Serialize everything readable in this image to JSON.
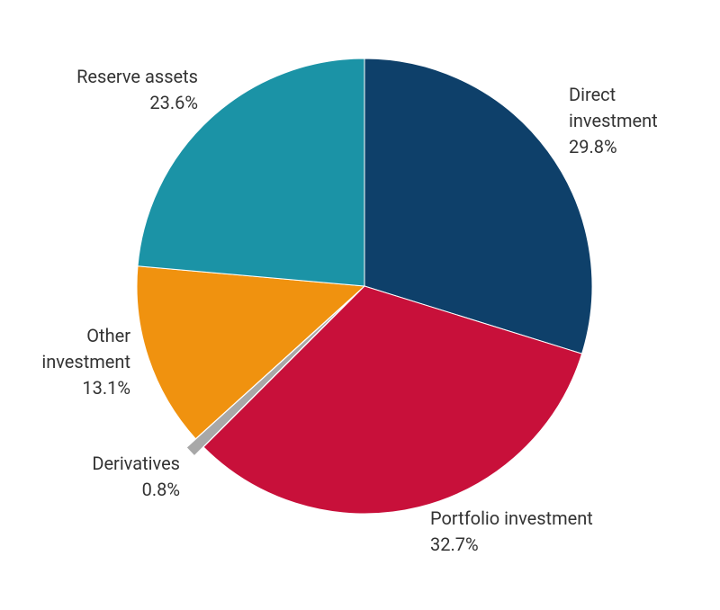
{
  "chart_data": {
    "type": "pie",
    "categories": [
      "Direct investment",
      "Portfolio investment",
      "Derivatives",
      "Other investment",
      "Reserve assets"
    ],
    "values": [
      29.8,
      32.7,
      0.8,
      13.1,
      23.6
    ],
    "value_labels": [
      "29.8%",
      "32.7%",
      "0.8%",
      "13.1%",
      "23.6%"
    ],
    "colors": [
      "#0e406a",
      "#c8103a",
      "#a8a8a8",
      "#f0920f",
      "#1b93a6"
    ]
  }
}
